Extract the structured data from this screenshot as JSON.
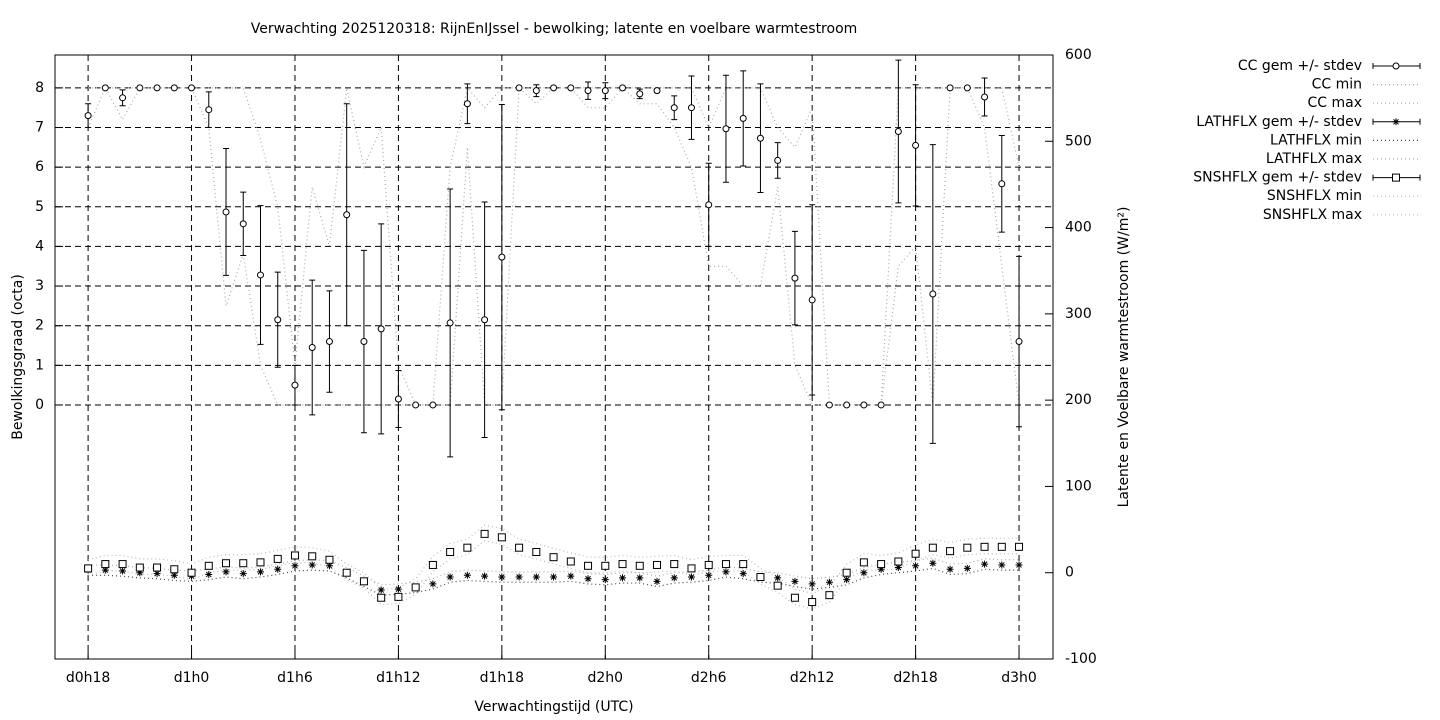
{
  "chart_data": {
    "type": "errorbar",
    "title": "Verwachting 2025120318: RijnEnIJssel - bewolking; latente en voelbare warmtestroom",
    "xlabel": "Verwachtingstijd (UTC)",
    "ylabel": "Bewolkingsgraad (octa)",
    "y2label": "Latente en Voelbare warmtestroom (W/m²)",
    "x": [
      18,
      19,
      20,
      21,
      22,
      23,
      24,
      25,
      26,
      27,
      28,
      29,
      30,
      31,
      32,
      33,
      34,
      35,
      36,
      37,
      38,
      39,
      40,
      41,
      42,
      43,
      44,
      45,
      46,
      47,
      48,
      49,
      50,
      51,
      52,
      53,
      54,
      55,
      56,
      57,
      58,
      59,
      60,
      61,
      62,
      63,
      64,
      65,
      66,
      67,
      68,
      69,
      70,
      71,
      72
    ],
    "xlim": [
      16.08,
      73.97
    ],
    "xticks": [
      {
        "value": 18,
        "label": "d0h18"
      },
      {
        "value": 24,
        "label": "d1h0"
      },
      {
        "value": 30,
        "label": "d1h6"
      },
      {
        "value": 36,
        "label": "d1h12"
      },
      {
        "value": 42,
        "label": "d1h18"
      },
      {
        "value": 48,
        "label": "d2h0"
      },
      {
        "value": 54,
        "label": "d2h6"
      },
      {
        "value": 60,
        "label": "d2h12"
      },
      {
        "value": 66,
        "label": "d2h18"
      },
      {
        "value": 72,
        "label": "d3h0"
      }
    ],
    "ylim": [
      -6.41,
      8.83
    ],
    "yticks": [
      0,
      1,
      2,
      3,
      4,
      5,
      6,
      7,
      8
    ],
    "y2lim": [
      -100,
      600
    ],
    "y2ticks": [
      -100,
      0,
      100,
      200,
      300,
      400,
      500,
      600
    ],
    "grid": true,
    "series": [
      {
        "name": "CC gem +/- stdev",
        "color": "#000000",
        "style": "errorbar",
        "marker": "circle",
        "values": [
          7.3,
          8,
          7.75,
          8,
          8,
          8,
          8,
          7.45,
          4.87,
          4.57,
          3.28,
          2.15,
          0.5,
          1.45,
          1.6,
          4.8,
          1.6,
          1.92,
          0.15,
          0,
          0,
          2.07,
          7.6,
          2.15,
          3.73,
          8,
          7.93,
          8,
          8,
          7.93,
          7.93,
          8,
          7.85,
          7.93,
          7.5,
          7.5,
          5.05,
          6.97,
          7.23,
          6.73,
          6.17,
          3.2,
          2.65,
          0,
          0,
          0,
          0,
          6.9,
          6.55,
          2.8,
          8,
          8,
          7.77,
          5.58,
          1.6
        ],
        "errors": [
          0.3,
          0,
          0.2,
          0,
          0,
          0,
          0,
          0.45,
          1.6,
          0.8,
          1.75,
          1.2,
          0.5,
          1.7,
          1.28,
          2.8,
          2.3,
          2.65,
          0.72,
          0,
          0,
          3.38,
          0.5,
          2.97,
          3.85,
          0,
          0.15,
          0,
          0,
          0.22,
          0.2,
          0,
          0.12,
          0.05,
          0.3,
          0.8,
          1.05,
          1.35,
          1.2,
          1.37,
          0.45,
          1.18,
          2.4,
          0,
          0,
          0,
          0,
          1.8,
          1.53,
          3.77,
          0,
          0,
          0.48,
          1.22,
          2.15
        ]
      },
      {
        "name": "CC min",
        "color": "#aaaaaa",
        "style": "dotted",
        "values": [
          7,
          8,
          7.2,
          8,
          8,
          8,
          8,
          7,
          2.5,
          3.8,
          1,
          0,
          0,
          0,
          0,
          0,
          0,
          0,
          0,
          0,
          0,
          0,
          6.5,
          0,
          0,
          8,
          7.6,
          8,
          8,
          7.5,
          7.5,
          8,
          7.6,
          7.6,
          7,
          6,
          3.5,
          3.5,
          3,
          3,
          5.5,
          1,
          0,
          0,
          0,
          0,
          0,
          3.5,
          4,
          0,
          8,
          8,
          7,
          3.5,
          0
        ]
      },
      {
        "name": "CC max",
        "color": "#aaaaaa",
        "style": "dotted",
        "values": [
          8,
          8,
          8,
          8,
          8,
          8,
          8,
          8,
          8,
          8,
          6.7,
          5,
          1,
          5.5,
          4,
          8,
          6,
          7,
          1,
          0,
          0,
          6,
          8,
          7.5,
          8,
          8,
          8,
          8,
          8,
          8,
          8,
          8,
          8,
          8,
          8,
          8,
          7,
          8,
          8,
          8,
          7,
          6.5,
          7.5,
          0,
          0,
          0,
          0,
          8,
          8,
          8,
          8,
          8,
          8,
          8,
          6
        ]
      },
      {
        "name": "LATHFLX gem +/- stdev",
        "color": "#000000",
        "style": "errorbar",
        "marker": "star",
        "axis": "y2",
        "values": [
          3,
          3,
          2,
          0,
          -1,
          -3,
          -4,
          -2,
          1,
          -1,
          1,
          4,
          8,
          9,
          8,
          0,
          -10,
          -20,
          -19,
          -17,
          -13,
          -5,
          -3,
          -4,
          -5,
          -5,
          -5,
          -5,
          -4,
          -7,
          -8,
          -6,
          -6,
          -10,
          -6,
          -5,
          -3,
          1,
          -1,
          -5,
          -6,
          -10,
          -13,
          -11,
          -8,
          0,
          4,
          6,
          8,
          11,
          4,
          5,
          10,
          9,
          9
        ]
      },
      {
        "name": "LATHFLX min",
        "color": "#444444",
        "style": "dotted",
        "axis": "y2",
        "values": [
          -3,
          -3,
          -4,
          -6,
          -7,
          -9,
          -10,
          -8,
          -5,
          -7,
          -5,
          -2,
          2,
          3,
          2,
          -6,
          -16,
          -26,
          -25,
          -23,
          -19,
          -11,
          -9,
          -10,
          -11,
          -11,
          -11,
          -11,
          -10,
          -13,
          -14,
          -12,
          -12,
          -16,
          -12,
          -11,
          -9,
          -5,
          -7,
          -11,
          -12,
          -16,
          -19,
          -17,
          -14,
          -6,
          -2,
          0,
          2,
          5,
          -2,
          -1,
          4,
          3,
          3
        ]
      },
      {
        "name": "LATHFLX max",
        "color": "#aaaaaa",
        "style": "dotted",
        "axis": "y2",
        "values": [
          9,
          9,
          8,
          6,
          5,
          3,
          2,
          4,
          7,
          5,
          7,
          10,
          14,
          15,
          14,
          6,
          -4,
          -14,
          -13,
          -11,
          -7,
          1,
          3,
          2,
          1,
          1,
          1,
          1,
          2,
          -1,
          -2,
          0,
          0,
          -4,
          0,
          1,
          3,
          7,
          5,
          1,
          0,
          -4,
          -7,
          -5,
          -2,
          6,
          10,
          12,
          14,
          17,
          10,
          11,
          16,
          15,
          15
        ]
      },
      {
        "name": "SNSHFLX gem +/- stdev",
        "color": "#000000",
        "style": "errorbar",
        "marker": "square",
        "axis": "y2",
        "values": [
          5,
          10,
          10,
          6,
          6,
          4,
          0,
          8,
          11,
          11,
          12,
          16,
          20,
          19,
          15,
          0,
          -10,
          -29,
          -28,
          -17,
          9,
          24,
          29,
          45,
          41,
          29,
          24,
          18,
          13,
          8,
          8,
          10,
          8,
          9,
          10,
          5,
          9,
          10,
          10,
          -5,
          -15,
          -29,
          -34,
          -26,
          0,
          12,
          10,
          13,
          22,
          29,
          25,
          29,
          30,
          30,
          30
        ]
      },
      {
        "name": "SNSHFLX min",
        "color": "#bbbbbb",
        "style": "dotted",
        "axis": "y2",
        "values": [
          -3,
          2,
          2,
          -2,
          -2,
          -4,
          -8,
          0,
          3,
          3,
          4,
          8,
          12,
          11,
          7,
          -8,
          -18,
          -37,
          -36,
          -25,
          1,
          16,
          21,
          37,
          33,
          21,
          16,
          10,
          5,
          0,
          0,
          2,
          0,
          1,
          2,
          -3,
          1,
          2,
          2,
          -13,
          -23,
          -37,
          -42,
          -34,
          -8,
          4,
          2,
          5,
          14,
          21,
          17,
          21,
          22,
          22,
          22
        ]
      },
      {
        "name": "SNSHFLX max",
        "color": "#bbbbbb",
        "style": "dotted",
        "axis": "y2",
        "values": [
          15,
          20,
          20,
          16,
          16,
          14,
          10,
          18,
          21,
          21,
          22,
          26,
          30,
          29,
          25,
          10,
          0,
          -19,
          -18,
          -7,
          19,
          34,
          39,
          55,
          51,
          39,
          34,
          28,
          23,
          18,
          18,
          20,
          18,
          19,
          20,
          15,
          19,
          20,
          20,
          5,
          -5,
          -19,
          -24,
          -16,
          10,
          22,
          20,
          23,
          32,
          39,
          35,
          39,
          40,
          40,
          40
        ]
      }
    ]
  }
}
